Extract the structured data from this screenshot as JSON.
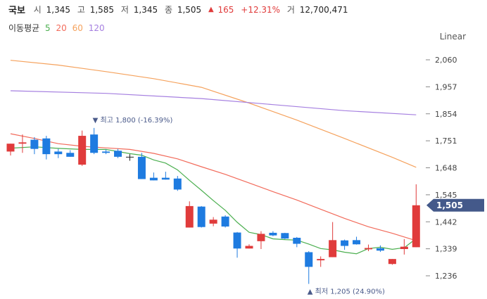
{
  "header": {
    "name": "국보",
    "open_label": "시",
    "open": "1,345",
    "high_label": "고",
    "high": "1,585",
    "low_label": "저",
    "low": "1,345",
    "close_label": "종",
    "close": "1,505",
    "change_arrow": "▲",
    "change": "165",
    "change_pct": "+12.31%",
    "volume_label": "거",
    "volume": "12,700,471"
  },
  "ma_legend": {
    "label": "이동평균",
    "periods": [
      "5",
      "20",
      "60",
      "120"
    ],
    "colors": [
      "#4caf50",
      "#f26b5b",
      "#f5a25d",
      "#a57fe0"
    ]
  },
  "scale_label": "Linear",
  "chart_data": {
    "type": "candlestick",
    "y_ticks": [
      "2,060",
      "1,957",
      "1,854",
      "1,751",
      "1,648",
      "1,545",
      "1,442",
      "1,339",
      "1,236"
    ],
    "y_tick_values": [
      2060,
      1957,
      1854,
      1751,
      1648,
      1545,
      1442,
      1339,
      1236
    ],
    "ylim": [
      1200,
      2090
    ],
    "up_color": "#e03b3b",
    "down_color": "#1e7be0",
    "flat_color": "#222222",
    "candles": [
      {
        "o": 1710,
        "h": 1740,
        "l": 1695,
        "c": 1740
      },
      {
        "o": 1740,
        "h": 1775,
        "l": 1705,
        "c": 1745
      },
      {
        "o": 1755,
        "h": 1765,
        "l": 1700,
        "c": 1720
      },
      {
        "o": 1760,
        "h": 1770,
        "l": 1680,
        "c": 1700
      },
      {
        "o": 1710,
        "h": 1720,
        "l": 1685,
        "c": 1700
      },
      {
        "o": 1705,
        "h": 1715,
        "l": 1690,
        "c": 1690
      },
      {
        "o": 1660,
        "h": 1790,
        "l": 1655,
        "c": 1770
      },
      {
        "o": 1775,
        "h": 1800,
        "l": 1700,
        "c": 1705
      },
      {
        "o": 1710,
        "h": 1718,
        "l": 1700,
        "c": 1705
      },
      {
        "o": 1713,
        "h": 1720,
        "l": 1685,
        "c": 1690
      },
      {
        "o": 1690,
        "h": 1700,
        "l": 1675,
        "c": 1690
      },
      {
        "o": 1690,
        "h": 1705,
        "l": 1605,
        "c": 1605
      },
      {
        "o": 1610,
        "h": 1630,
        "l": 1600,
        "c": 1600
      },
      {
        "o": 1610,
        "h": 1633,
        "l": 1603,
        "c": 1603
      },
      {
        "o": 1607,
        "h": 1617,
        "l": 1560,
        "c": 1565
      },
      {
        "o": 1420,
        "h": 1520,
        "l": 1420,
        "c": 1502
      },
      {
        "o": 1500,
        "h": 1502,
        "l": 1420,
        "c": 1422
      },
      {
        "o": 1435,
        "h": 1460,
        "l": 1425,
        "c": 1450
      },
      {
        "o": 1462,
        "h": 1467,
        "l": 1420,
        "c": 1424
      },
      {
        "o": 1401,
        "h": 1403,
        "l": 1305,
        "c": 1340
      },
      {
        "o": 1340,
        "h": 1356,
        "l": 1340,
        "c": 1350
      },
      {
        "o": 1368,
        "h": 1406,
        "l": 1338,
        "c": 1396
      },
      {
        "o": 1400,
        "h": 1406,
        "l": 1387,
        "c": 1390
      },
      {
        "o": 1399,
        "h": 1400,
        "l": 1376,
        "c": 1378
      },
      {
        "o": 1381,
        "h": 1384,
        "l": 1345,
        "c": 1358
      },
      {
        "o": 1326,
        "h": 1330,
        "l": 1205,
        "c": 1270
      },
      {
        "o": 1295,
        "h": 1310,
        "l": 1270,
        "c": 1300
      },
      {
        "o": 1307,
        "h": 1441,
        "l": 1307,
        "c": 1372
      },
      {
        "o": 1371,
        "h": 1374,
        "l": 1335,
        "c": 1350
      },
      {
        "o": 1372,
        "h": 1385,
        "l": 1355,
        "c": 1356
      },
      {
        "o": 1337,
        "h": 1355,
        "l": 1330,
        "c": 1342
      },
      {
        "o": 1341,
        "h": 1352,
        "l": 1327,
        "c": 1332
      },
      {
        "o": 1281,
        "h": 1300,
        "l": 1278,
        "c": 1300
      },
      {
        "o": 1338,
        "h": 1376,
        "l": 1317,
        "c": 1347
      },
      {
        "o": 1345,
        "h": 1585,
        "l": 1345,
        "c": 1505
      }
    ],
    "ma_lines": [
      {
        "name": "5",
        "color": "#4caf50",
        "points": [
          [
            0,
            1723
          ],
          [
            2,
            1728
          ],
          [
            4,
            1722
          ],
          [
            6,
            1718
          ],
          [
            8,
            1718
          ],
          [
            10,
            1702
          ],
          [
            11,
            1696
          ],
          [
            12,
            1678
          ],
          [
            13,
            1666
          ],
          [
            14,
            1640
          ],
          [
            15,
            1600
          ],
          [
            16,
            1562
          ],
          [
            17,
            1523
          ],
          [
            18,
            1486
          ],
          [
            19,
            1440
          ],
          [
            20,
            1402
          ],
          [
            21,
            1393
          ],
          [
            22,
            1377
          ],
          [
            23,
            1374
          ],
          [
            24,
            1372
          ],
          [
            25,
            1357
          ],
          [
            26,
            1340
          ],
          [
            27,
            1335
          ],
          [
            28,
            1326
          ],
          [
            29,
            1320
          ],
          [
            30,
            1340
          ],
          [
            31,
            1345
          ],
          [
            32,
            1337
          ],
          [
            33,
            1343
          ],
          [
            34,
            1378
          ]
        ]
      },
      {
        "name": "20",
        "color": "#f26b5b",
        "points": [
          [
            0,
            1778
          ],
          [
            2,
            1760
          ],
          [
            4,
            1740
          ],
          [
            6,
            1730
          ],
          [
            8,
            1724
          ],
          [
            10,
            1718
          ],
          [
            12,
            1703
          ],
          [
            14,
            1682
          ],
          [
            16,
            1652
          ],
          [
            18,
            1623
          ],
          [
            20,
            1590
          ],
          [
            22,
            1557
          ],
          [
            24,
            1525
          ],
          [
            26,
            1490
          ],
          [
            28,
            1455
          ],
          [
            30,
            1423
          ],
          [
            32,
            1398
          ],
          [
            34,
            1370
          ]
        ]
      },
      {
        "name": "60",
        "color": "#f5a25d",
        "points": [
          [
            0,
            2058
          ],
          [
            4,
            2040
          ],
          [
            8,
            2015
          ],
          [
            12,
            1988
          ],
          [
            16,
            1955
          ],
          [
            20,
            1895
          ],
          [
            24,
            1830
          ],
          [
            28,
            1760
          ],
          [
            32,
            1688
          ],
          [
            34,
            1650
          ]
        ]
      },
      {
        "name": "120",
        "color": "#a57fe0",
        "points": [
          [
            0,
            1942
          ],
          [
            8,
            1932
          ],
          [
            16,
            1912
          ],
          [
            22,
            1889
          ],
          [
            28,
            1866
          ],
          [
            34,
            1850
          ]
        ]
      }
    ],
    "current_price": "1,505",
    "current_value": 1505,
    "annotations": {
      "high": {
        "arrow": "▼",
        "label": "최고",
        "value": "1,800",
        "pct": "(-16.39%)",
        "index": 7,
        "price": 1800
      },
      "low": {
        "arrow": "▲",
        "label": "최저",
        "value": "1,205",
        "pct": "(24.90%)",
        "index": 25,
        "price": 1205
      }
    }
  }
}
